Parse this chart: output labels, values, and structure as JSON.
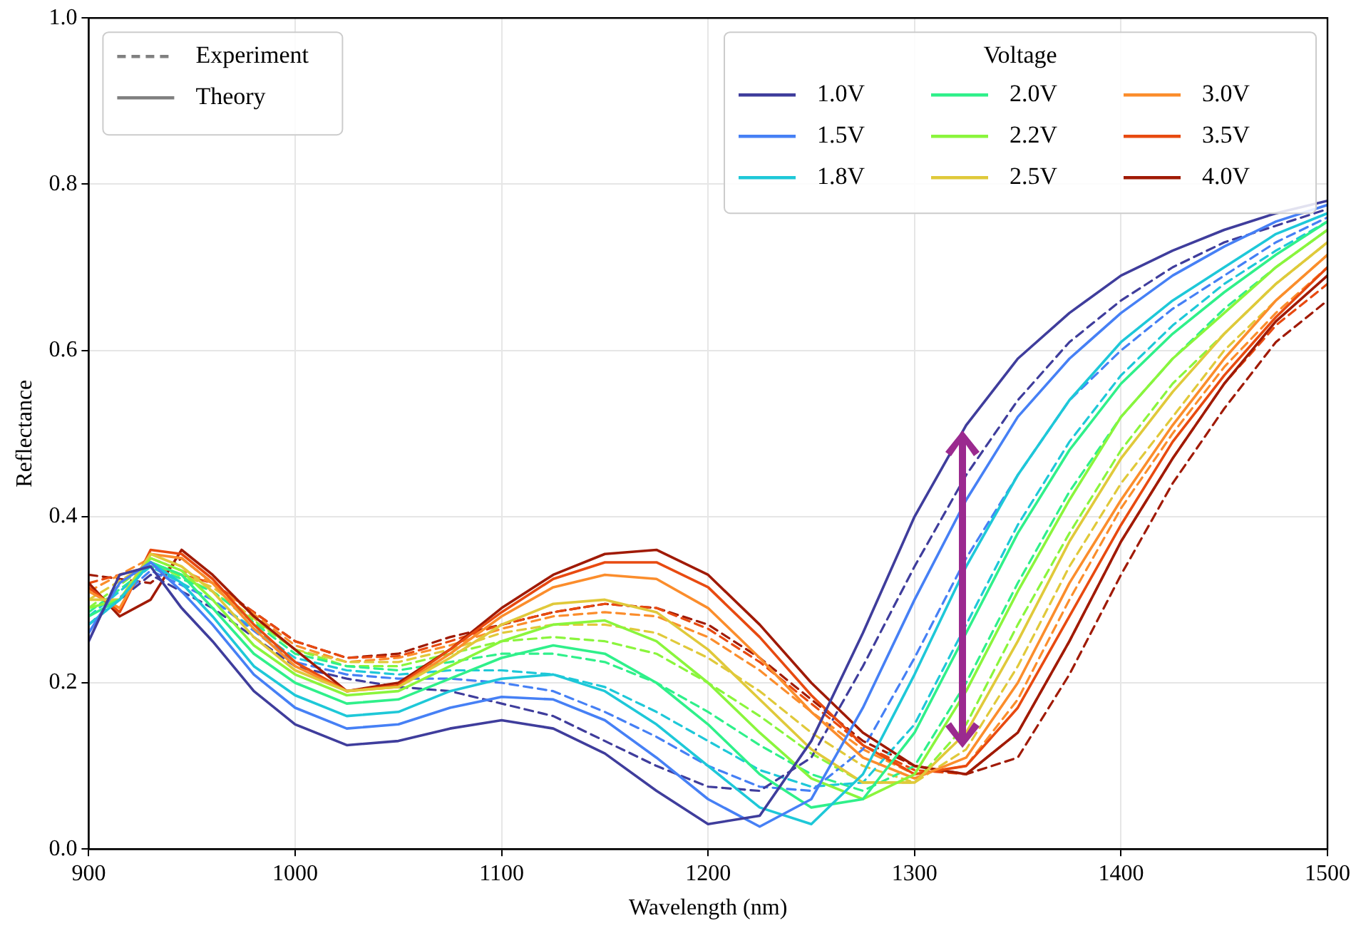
{
  "chart_data": {
    "type": "line",
    "xlabel": "Wavelength (nm)",
    "ylabel": "Reflectance",
    "legend_title": "Voltage",
    "legend": "top right",
    "grid": true,
    "xlim": [
      900,
      1500
    ],
    "ylim": [
      0,
      1.0
    ],
    "xticks": [
      900,
      1000,
      1100,
      1200,
      1300,
      1400,
      1500
    ],
    "yticks": [
      {
        "value": 0,
        "label": "0.0"
      },
      0.2,
      0.4,
      0.6,
      0.8,
      {
        "value": 1,
        "label": "1.0"
      }
    ],
    "marker": "none",
    "series": [
      {
        "name": "Experiment",
        "color": "#808080",
        "line_style": "dashed"
      },
      {
        "name": "Theory",
        "color": "#808080",
        "line_style": "solid"
      },
      {
        "name": "1.0V",
        "color": "#3f3d9c",
        "line_style": "solid",
        "x": [
          900,
          915,
          930,
          945,
          960,
          980,
          1000,
          1025,
          1050,
          1075,
          1100,
          1125,
          1150,
          1175,
          1200,
          1225,
          1250,
          1275,
          1300,
          1325,
          1350,
          1375,
          1400,
          1425,
          1450,
          1475,
          1500
        ],
        "values": [
          0.25,
          0.33,
          0.34,
          0.29,
          0.25,
          0.19,
          0.15,
          0.125,
          0.13,
          0.145,
          0.155,
          0.145,
          0.115,
          0.07,
          0.03,
          0.04,
          0.13,
          0.26,
          0.4,
          0.51,
          0.59,
          0.645,
          0.69,
          0.72,
          0.745,
          0.765,
          0.78
        ]
      },
      {
        "name": "1.5V",
        "color": "#4680f5",
        "line_style": "solid",
        "x": [
          900,
          915,
          930,
          945,
          960,
          980,
          1000,
          1025,
          1050,
          1075,
          1100,
          1125,
          1150,
          1175,
          1200,
          1225,
          1250,
          1275,
          1300,
          1325,
          1350,
          1375,
          1400,
          1425,
          1450,
          1475,
          1500
        ],
        "values": [
          0.26,
          0.32,
          0.345,
          0.31,
          0.27,
          0.21,
          0.17,
          0.145,
          0.15,
          0.17,
          0.183,
          0.18,
          0.155,
          0.11,
          0.06,
          0.027,
          0.06,
          0.17,
          0.3,
          0.42,
          0.52,
          0.59,
          0.645,
          0.69,
          0.725,
          0.755,
          0.775
        ]
      },
      {
        "name": "1.8V",
        "color": "#1ec8d8",
        "line_style": "solid",
        "x": [
          900,
          915,
          930,
          945,
          960,
          980,
          1000,
          1025,
          1050,
          1075,
          1100,
          1125,
          1150,
          1175,
          1200,
          1225,
          1250,
          1275,
          1300,
          1325,
          1350,
          1375,
          1400,
          1425,
          1450,
          1475,
          1500
        ],
        "values": [
          0.27,
          0.3,
          0.345,
          0.32,
          0.28,
          0.22,
          0.185,
          0.16,
          0.165,
          0.19,
          0.205,
          0.21,
          0.19,
          0.15,
          0.1,
          0.05,
          0.03,
          0.09,
          0.21,
          0.34,
          0.45,
          0.54,
          0.61,
          0.66,
          0.7,
          0.74,
          0.765
        ]
      },
      {
        "name": "2.0V",
        "color": "#2ff08a",
        "line_style": "solid",
        "x": [
          900,
          915,
          930,
          945,
          960,
          980,
          1000,
          1025,
          1050,
          1075,
          1100,
          1125,
          1150,
          1175,
          1200,
          1225,
          1250,
          1275,
          1300,
          1325,
          1350,
          1375,
          1400,
          1425,
          1450,
          1475,
          1500
        ],
        "values": [
          0.28,
          0.3,
          0.345,
          0.33,
          0.29,
          0.235,
          0.2,
          0.175,
          0.18,
          0.205,
          0.23,
          0.245,
          0.235,
          0.2,
          0.15,
          0.09,
          0.05,
          0.06,
          0.14,
          0.26,
          0.38,
          0.48,
          0.56,
          0.62,
          0.67,
          0.715,
          0.755
        ]
      },
      {
        "name": "2.2V",
        "color": "#8af53c",
        "line_style": "solid",
        "x": [
          900,
          915,
          930,
          945,
          960,
          980,
          1000,
          1025,
          1050,
          1075,
          1100,
          1125,
          1150,
          1175,
          1200,
          1225,
          1250,
          1275,
          1300,
          1325,
          1350,
          1375,
          1400,
          1425,
          1450,
          1475,
          1500
        ],
        "values": [
          0.29,
          0.3,
          0.35,
          0.335,
          0.3,
          0.245,
          0.21,
          0.185,
          0.19,
          0.22,
          0.25,
          0.27,
          0.275,
          0.25,
          0.2,
          0.14,
          0.085,
          0.06,
          0.09,
          0.19,
          0.31,
          0.42,
          0.52,
          0.59,
          0.645,
          0.7,
          0.745
        ]
      },
      {
        "name": "2.5V",
        "color": "#e0c93a",
        "line_style": "solid",
        "x": [
          900,
          915,
          930,
          945,
          960,
          980,
          1000,
          1025,
          1050,
          1075,
          1100,
          1125,
          1150,
          1175,
          1200,
          1225,
          1250,
          1275,
          1300,
          1325,
          1350,
          1375,
          1400,
          1425,
          1450,
          1475,
          1500
        ],
        "values": [
          0.3,
          0.3,
          0.355,
          0.34,
          0.31,
          0.255,
          0.215,
          0.19,
          0.195,
          0.23,
          0.27,
          0.295,
          0.3,
          0.285,
          0.24,
          0.18,
          0.12,
          0.08,
          0.08,
          0.14,
          0.25,
          0.37,
          0.47,
          0.55,
          0.62,
          0.68,
          0.73
        ]
      },
      {
        "name": "3.0V",
        "color": "#fb8d2c",
        "line_style": "solid",
        "x": [
          900,
          915,
          930,
          945,
          960,
          980,
          1000,
          1025,
          1050,
          1075,
          1100,
          1125,
          1150,
          1175,
          1200,
          1225,
          1250,
          1275,
          1300,
          1325,
          1350,
          1375,
          1400,
          1425,
          1450,
          1475,
          1500
        ],
        "values": [
          0.31,
          0.29,
          0.355,
          0.35,
          0.32,
          0.265,
          0.22,
          0.19,
          0.195,
          0.235,
          0.28,
          0.315,
          0.33,
          0.325,
          0.29,
          0.23,
          0.165,
          0.11,
          0.085,
          0.11,
          0.2,
          0.32,
          0.42,
          0.51,
          0.59,
          0.66,
          0.715
        ]
      },
      {
        "name": "3.5V",
        "color": "#e84a10",
        "line_style": "solid",
        "x": [
          900,
          915,
          930,
          945,
          960,
          980,
          1000,
          1025,
          1050,
          1075,
          1100,
          1125,
          1150,
          1175,
          1200,
          1225,
          1250,
          1275,
          1300,
          1325,
          1350,
          1375,
          1400,
          1425,
          1450,
          1475,
          1500
        ],
        "values": [
          0.315,
          0.285,
          0.36,
          0.355,
          0.325,
          0.27,
          0.225,
          0.19,
          0.197,
          0.24,
          0.285,
          0.325,
          0.345,
          0.345,
          0.315,
          0.255,
          0.185,
          0.125,
          0.09,
          0.1,
          0.17,
          0.28,
          0.39,
          0.49,
          0.57,
          0.64,
          0.7
        ]
      },
      {
        "name": "4.0V",
        "color": "#a01a05",
        "line_style": "solid",
        "x": [
          900,
          915,
          930,
          945,
          960,
          980,
          1000,
          1025,
          1050,
          1075,
          1100,
          1125,
          1150,
          1175,
          1200,
          1225,
          1250,
          1275,
          1300,
          1325,
          1350,
          1375,
          1400,
          1425,
          1450,
          1475,
          1500
        ],
        "values": [
          0.32,
          0.28,
          0.3,
          0.36,
          0.33,
          0.28,
          0.24,
          0.19,
          0.2,
          0.24,
          0.29,
          0.33,
          0.355,
          0.36,
          0.33,
          0.27,
          0.2,
          0.14,
          0.1,
          0.09,
          0.14,
          0.25,
          0.37,
          0.47,
          0.56,
          0.635,
          0.69
        ]
      },
      {
        "color": "#3f3d9c",
        "line_style": "dashed",
        "x": [
          900,
          930,
          960,
          1000,
          1025,
          1050,
          1075,
          1100,
          1125,
          1150,
          1175,
          1200,
          1225,
          1250,
          1275,
          1300,
          1325,
          1350,
          1375,
          1400,
          1425,
          1450,
          1475,
          1500
        ],
        "values": [
          0.27,
          0.33,
          0.29,
          0.22,
          0.205,
          0.195,
          0.19,
          0.175,
          0.16,
          0.13,
          0.1,
          0.075,
          0.07,
          0.11,
          0.22,
          0.34,
          0.45,
          0.54,
          0.61,
          0.66,
          0.7,
          0.73,
          0.75,
          0.77
        ]
      },
      {
        "color": "#4680f5",
        "line_style": "dashed",
        "x": [
          900,
          930,
          960,
          1000,
          1025,
          1050,
          1075,
          1100,
          1125,
          1150,
          1175,
          1200,
          1225,
          1250,
          1275,
          1300,
          1325,
          1350,
          1375,
          1400,
          1425,
          1450,
          1475,
          1500
        ],
        "values": [
          0.27,
          0.335,
          0.3,
          0.225,
          0.21,
          0.205,
          0.205,
          0.2,
          0.19,
          0.165,
          0.135,
          0.1,
          0.075,
          0.07,
          0.12,
          0.23,
          0.35,
          0.45,
          0.54,
          0.6,
          0.65,
          0.69,
          0.73,
          0.76
        ]
      },
      {
        "color": "#1ec8d8",
        "line_style": "dashed",
        "x": [
          900,
          930,
          960,
          1000,
          1025,
          1050,
          1075,
          1100,
          1125,
          1150,
          1175,
          1200,
          1225,
          1250,
          1275,
          1300,
          1325,
          1350,
          1375,
          1400,
          1425,
          1450,
          1475,
          1500
        ],
        "values": [
          0.28,
          0.34,
          0.3,
          0.23,
          0.215,
          0.21,
          0.215,
          0.215,
          0.21,
          0.195,
          0.165,
          0.13,
          0.095,
          0.075,
          0.08,
          0.15,
          0.27,
          0.39,
          0.49,
          0.57,
          0.63,
          0.68,
          0.72,
          0.755
        ]
      },
      {
        "color": "#2ff08a",
        "line_style": "dashed",
        "x": [
          900,
          930,
          960,
          1000,
          1025,
          1050,
          1075,
          1100,
          1125,
          1150,
          1175,
          1200,
          1225,
          1250,
          1275,
          1300,
          1325,
          1350,
          1375,
          1400,
          1425,
          1450,
          1475,
          1500
        ],
        "values": [
          0.285,
          0.34,
          0.31,
          0.235,
          0.22,
          0.215,
          0.225,
          0.235,
          0.235,
          0.225,
          0.2,
          0.165,
          0.125,
          0.09,
          0.07,
          0.1,
          0.2,
          0.32,
          0.43,
          0.52,
          0.59,
          0.65,
          0.7,
          0.745
        ]
      },
      {
        "color": "#8af53c",
        "line_style": "dashed",
        "x": [
          900,
          930,
          960,
          1000,
          1025,
          1050,
          1075,
          1100,
          1125,
          1150,
          1175,
          1200,
          1225,
          1250,
          1275,
          1300,
          1325,
          1350,
          1375,
          1400,
          1425,
          1450,
          1475,
          1500
        ],
        "values": [
          0.29,
          0.345,
          0.31,
          0.24,
          0.22,
          0.22,
          0.235,
          0.25,
          0.255,
          0.25,
          0.235,
          0.2,
          0.16,
          0.115,
          0.08,
          0.08,
          0.15,
          0.27,
          0.38,
          0.48,
          0.56,
          0.62,
          0.68,
          0.73
        ]
      },
      {
        "color": "#e0c93a",
        "line_style": "dashed",
        "x": [
          900,
          930,
          960,
          1000,
          1025,
          1050,
          1075,
          1100,
          1125,
          1150,
          1175,
          1200,
          1225,
          1250,
          1275,
          1300,
          1325,
          1350,
          1375,
          1400,
          1425,
          1450,
          1475,
          1500
        ],
        "values": [
          0.3,
          0.345,
          0.315,
          0.24,
          0.225,
          0.225,
          0.24,
          0.26,
          0.27,
          0.27,
          0.26,
          0.23,
          0.19,
          0.14,
          0.1,
          0.08,
          0.12,
          0.22,
          0.34,
          0.44,
          0.52,
          0.6,
          0.66,
          0.715
        ]
      },
      {
        "color": "#fb8d2c",
        "line_style": "dashed",
        "x": [
          900,
          930,
          960,
          1000,
          1025,
          1050,
          1075,
          1100,
          1125,
          1150,
          1175,
          1200,
          1225,
          1250,
          1275,
          1300,
          1325,
          1350,
          1375,
          1400,
          1425,
          1450,
          1475,
          1500
        ],
        "values": [
          0.31,
          0.35,
          0.32,
          0.245,
          0.225,
          0.23,
          0.245,
          0.265,
          0.28,
          0.285,
          0.28,
          0.255,
          0.215,
          0.165,
          0.12,
          0.09,
          0.1,
          0.18,
          0.3,
          0.41,
          0.5,
          0.58,
          0.645,
          0.7
        ]
      },
      {
        "color": "#e84a10",
        "line_style": "dashed",
        "x": [
          900,
          930,
          960,
          1000,
          1025,
          1050,
          1075,
          1100,
          1125,
          1150,
          1175,
          1200,
          1225,
          1250,
          1275,
          1300,
          1325,
          1350,
          1375,
          1400,
          1425,
          1450,
          1475,
          1500
        ],
        "values": [
          0.32,
          0.34,
          0.32,
          0.25,
          0.23,
          0.232,
          0.25,
          0.27,
          0.285,
          0.295,
          0.29,
          0.265,
          0.225,
          0.175,
          0.125,
          0.095,
          0.09,
          0.14,
          0.25,
          0.37,
          0.47,
          0.56,
          0.63,
          0.68
        ]
      },
      {
        "color": "#a01a05",
        "line_style": "dashed",
        "x": [
          900,
          930,
          945,
          960,
          1000,
          1025,
          1050,
          1075,
          1100,
          1125,
          1150,
          1175,
          1200,
          1225,
          1250,
          1275,
          1300,
          1325,
          1350,
          1375,
          1400,
          1425,
          1450,
          1475,
          1500
        ],
        "values": [
          0.33,
          0.32,
          0.35,
          0.32,
          0.25,
          0.23,
          0.235,
          0.255,
          0.27,
          0.285,
          0.295,
          0.29,
          0.27,
          0.23,
          0.18,
          0.13,
          0.1,
          0.09,
          0.11,
          0.21,
          0.33,
          0.44,
          0.53,
          0.61,
          0.66
        ]
      }
    ]
  }
}
